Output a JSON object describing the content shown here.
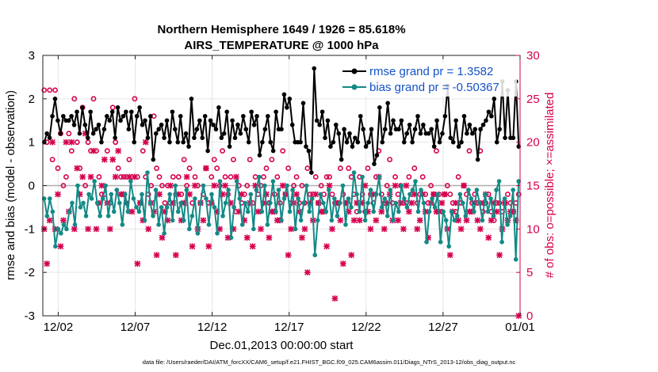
{
  "chart_data": {
    "type": "line",
    "title": "Northern Hemisphere 1649 / 1926 = 85.618%",
    "subtitle": "AIRS_TEMPERATURE @ 1000 hPa",
    "xlabel": "Dec.01,2013 00:00:00 start",
    "ylabel": "rmse and bias (model - observation)",
    "y2label": "# of obs: o=possible; ×=assimilated",
    "footer": "data file: /Users/raeder/DAI/ATM_forcXX/CAM6_setup/f.e21.FHIST_BGC.f09_025.CAM6assim.011/Diags_NTrS_2013-12/obs_diag_output.nc",
    "xlim": [
      0,
      31
    ],
    "ylim": [
      -3,
      3
    ],
    "y2lim": [
      0,
      30
    ],
    "x_ticks": [
      1,
      6,
      11,
      16,
      21,
      26,
      31
    ],
    "x_tick_labels": [
      "12/02",
      "12/07",
      "12/12",
      "12/17",
      "12/22",
      "12/27",
      "01/01"
    ],
    "y_ticks": [
      "-3",
      "-2",
      "-1",
      "0",
      "1",
      "2",
      "3"
    ],
    "y2_ticks": [
      "0",
      "5",
      "10",
      "15",
      "20",
      "25",
      "30"
    ],
    "grid": true,
    "legend_position": "top-right",
    "series": [
      {
        "name": "rmse grand pr = 1.3582",
        "axis": "left",
        "color": "#000000",
        "values": [
          1.0,
          1.2,
          1.1,
          1.6,
          2.0,
          1.5,
          1.2,
          1.6,
          1.5,
          1.5,
          1.6,
          1.4,
          1.7,
          1.2,
          1.8,
          1.4,
          1.1,
          1.7,
          1.2,
          1.3,
          1.4,
          1.0,
          1.3,
          1.6,
          1.5,
          1.7,
          1.1,
          1.8,
          1.5,
          1.6,
          1.7,
          1.3,
          1.7,
          1.0,
          1.6,
          1.8,
          1.4,
          1.5,
          1.1,
          1.6,
          0.6,
          1.2,
          1.3,
          1.4,
          1.1,
          1.5,
          1.0,
          1.7,
          1.3,
          1.0,
          1.6,
          1.0,
          1.2,
          0.9,
          2.0,
          1.1,
          1.3,
          1.5,
          1.1,
          1.6,
          0.8,
          1.5,
          1.4,
          1.3,
          1.8,
          1.1,
          1.2,
          1.7,
          0.9,
          1.5,
          1.1,
          1.4,
          1.2,
          1.6,
          1.3,
          1.0,
          1.7,
          1.4,
          1.6,
          0.7,
          1.0,
          1.3,
          1.6,
          1.0,
          0.8,
          1.7,
          1.3,
          1.3,
          2.1,
          1.8,
          2.0,
          1.4,
          1.0,
          1.0,
          1.0,
          1.9,
          0.9,
          0.8,
          0.3,
          2.7,
          1.5,
          1.4,
          1.7,
          1.1,
          1.5,
          0.9,
          1.0,
          1.4,
          1.2,
          0.6,
          1.3,
          1.0,
          1.2,
          0.9,
          1.1,
          1.0,
          1.6,
          1.3,
          0.9,
          1.0,
          1.3,
          0.5,
          0.7,
          1.8,
          1.0,
          1.3,
          1.9,
          1.2,
          1.5,
          1.3,
          1.3,
          1.5,
          1.0,
          1.2,
          1.4,
          1.0,
          1.3,
          1.6,
          1.2,
          1.4,
          1.2,
          1.2,
          1.3,
          0.9,
          1.5,
          1.0,
          1.2,
          1.6,
          2.3,
          1.1,
          1.0,
          1.5,
          0.9,
          1.0,
          1.6,
          1.2,
          1.4,
          1.2,
          1.3,
          0.6,
          1.3,
          1.4,
          1.5,
          1.7,
          1.6,
          2.0,
          1.0,
          1.3,
          2.4,
          1.1,
          2.2,
          1.1,
          1.1,
          2.4,
          0.9
        ]
      },
      {
        "name": "bias grand pr = -0.50367",
        "axis": "left",
        "color": "#138a86",
        "values": [
          -0.3,
          -0.7,
          -0.3,
          -0.6,
          -1.4,
          -1.0,
          -1.1,
          -0.9,
          -1.0,
          -0.6,
          -0.4,
          -0.9,
          0.0,
          -0.5,
          -0.4,
          -0.7,
          -0.2,
          -0.3,
          0.1,
          -0.4,
          -0.7,
          -0.3,
          0.0,
          -0.7,
          -0.2,
          -0.6,
          -0.1,
          -0.4,
          -0.9,
          -0.2,
          -0.6,
          0.1,
          -0.3,
          -0.5,
          -0.6,
          -0.2,
          -0.8,
          0.3,
          -0.4,
          -0.7,
          -0.1,
          -0.9,
          -0.5,
          -1.1,
          -0.5,
          -0.2,
          -0.8,
          0.0,
          -0.6,
          -0.4,
          -0.8,
          -0.1,
          -1.0,
          -0.7,
          -0.3,
          -1.1,
          -0.4,
          0.0,
          -0.3,
          -0.9,
          -0.2,
          -0.5,
          -1.1,
          0.1,
          -0.7,
          -0.4,
          -0.1,
          -1.2,
          -0.5,
          0.1,
          -0.3,
          -0.9,
          -0.4,
          -0.6,
          -0.2,
          -1.0,
          -0.1,
          0.2,
          -0.6,
          0.0,
          -0.9,
          -0.4,
          0.1,
          -0.6,
          -0.1,
          -0.8,
          -0.3,
          0.0,
          -0.6,
          -0.1,
          -1.0,
          -0.3,
          -0.8,
          -0.4,
          0.0,
          -0.6,
          -0.3,
          -1.6,
          -0.8,
          -0.2,
          -0.4,
          -0.6,
          -0.1,
          -0.8,
          -0.3,
          -0.7,
          -0.4,
          0.0,
          -0.9,
          -0.3,
          -0.5,
          0.3,
          -0.2,
          -0.6,
          0.2,
          -0.8,
          -0.4,
          -0.1,
          -0.6,
          -0.2,
          0.2,
          -0.5,
          -0.3,
          -0.7,
          -0.1,
          -0.8,
          -0.4,
          -0.6,
          0.0,
          -0.3,
          -0.5,
          -0.2,
          -0.1,
          0.1,
          -0.6,
          -0.1,
          -0.4,
          -1.3,
          -0.6,
          -0.3,
          -0.5,
          -0.2,
          -1.3,
          -0.6,
          -0.8,
          -1.4,
          -0.6,
          -0.8,
          -0.7,
          -0.2,
          -0.4,
          -0.7,
          -0.1,
          -0.3,
          -0.6,
          -0.1,
          -0.4,
          -0.8,
          -0.2,
          -0.6,
          -0.3,
          -0.7,
          -0.1,
          0.1,
          -1.3,
          -0.3,
          -0.9,
          -0.7,
          -0.1,
          -1.7,
          0.1
        ]
      }
    ],
    "obs_possible": {
      "name": "o=possible",
      "axis": "right",
      "color": "#d6004f",
      "values": [
        26,
        20,
        26,
        18,
        26,
        17,
        21,
        15,
        16,
        21,
        19,
        25,
        20,
        17,
        24,
        15,
        20,
        19,
        25,
        19,
        16,
        14,
        14,
        19,
        13,
        24,
        20,
        17,
        16,
        16,
        16,
        18,
        16,
        25,
        16,
        13,
        19,
        16,
        14,
        15,
        23,
        17,
        16,
        15,
        13,
        15,
        13,
        16,
        14,
        16,
        14,
        18,
        15,
        17,
        13,
        16,
        15,
        13,
        14,
        17,
        13,
        16,
        18,
        17,
        15,
        19,
        16,
        14,
        16,
        18,
        12,
        15,
        13,
        14,
        15,
        18,
        13,
        16,
        14,
        15,
        16,
        17,
        13,
        18,
        14,
        16,
        13,
        19,
        14,
        17,
        13,
        15,
        16,
        13,
        15,
        13,
        17,
        14,
        14,
        16,
        13,
        15,
        14,
        16,
        16,
        14,
        13,
        13,
        17,
        14,
        13,
        17,
        16,
        14,
        12,
        16,
        14,
        12,
        17,
        14,
        13,
        16,
        19,
        14,
        13,
        15,
        18,
        13,
        16,
        14,
        15,
        13,
        13,
        16,
        14,
        17,
        13,
        14,
        16,
        14,
        13,
        15,
        14,
        19,
        14,
        12,
        14,
        15,
        14,
        13,
        12,
        16,
        13,
        15,
        14,
        19,
        13,
        14,
        13,
        19,
        12,
        13,
        14,
        12,
        11,
        13,
        13,
        12,
        13,
        14,
        13,
        12,
        13,
        14
      ]
    },
    "obs_assimilated": {
      "name": "×=assimilated",
      "axis": "right",
      "color": "#d6004f",
      "values": [
        10,
        6,
        11,
        20,
        10,
        14,
        8,
        11,
        20,
        12,
        20,
        10,
        17,
        14,
        16,
        21,
        10,
        16,
        19,
        10,
        13,
        15,
        18,
        13,
        10,
        18,
        16,
        19,
        14,
        14,
        13,
        16,
        12,
        16,
        6,
        13,
        11,
        20,
        10,
        13,
        12,
        7,
        14,
        9,
        12,
        11,
        15,
        13,
        7,
        14,
        11,
        13,
        16,
        14,
        8,
        15,
        10,
        13,
        11,
        17,
        8,
        13,
        15,
        12,
        10,
        14,
        15,
        9,
        13,
        10,
        16,
        12,
        14,
        11,
        9,
        13,
        8,
        15,
        12,
        10,
        13,
        14,
        9,
        12,
        12,
        11,
        11,
        15,
        14,
        7,
        10,
        13,
        14,
        12,
        9,
        10,
        5,
        13,
        11,
        14,
        13,
        12,
        12,
        8,
        15,
        10,
        2,
        13,
        11,
        6,
        13,
        12,
        7,
        11,
        13,
        11,
        13,
        15,
        12,
        10,
        14,
        11,
        16,
        12,
        10,
        13,
        14,
        11,
        15,
        11,
        13,
        10,
        15,
        12,
        13,
        14,
        10,
        11,
        14,
        12,
        9,
        13,
        14,
        12,
        12,
        13,
        14,
        10,
        7,
        12,
        13,
        11,
        10,
        15,
        11,
        12,
        12,
        13,
        11,
        10,
        13,
        14,
        9,
        11,
        13,
        12,
        7,
        10,
        13,
        11,
        12,
        12,
        11,
        0
      ]
    }
  }
}
